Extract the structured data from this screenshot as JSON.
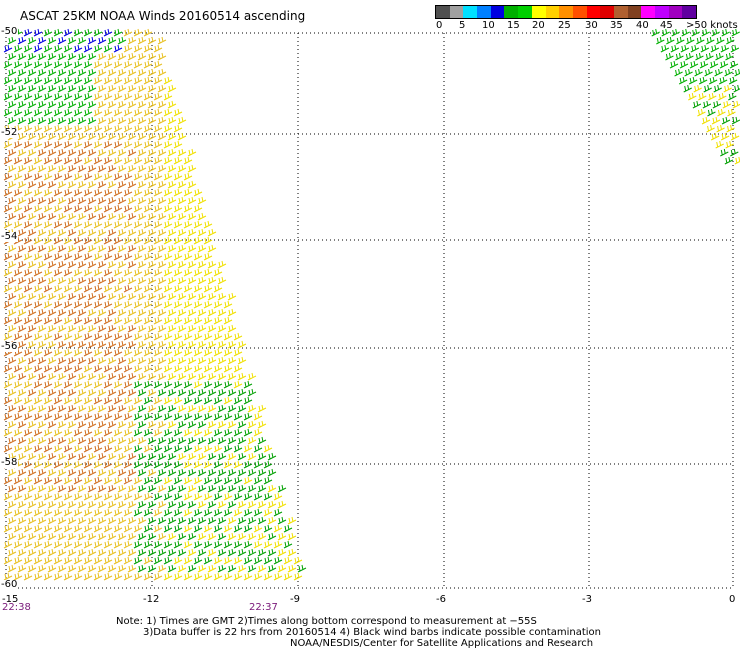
{
  "title": "ASCAT 25KM NOAA Winds 20160514 ascending",
  "legend": {
    "colors": [
      "#505050",
      "#a0a0a0",
      "#00e0ff",
      "#0080ff",
      "#0000e0",
      "#00b000",
      "#00d000",
      "#ffff00",
      "#ffd000",
      "#ff9000",
      "#ff5000",
      "#ff0000",
      "#e00000",
      "#b06030",
      "#804020",
      "#ff00ff",
      "#c000ff",
      "#a000c0",
      "#6000a0"
    ],
    "labels": [
      "0",
      "5",
      "10",
      "15",
      "20",
      "25",
      "30",
      "35",
      "40",
      "45",
      ">50 knots"
    ]
  },
  "map": {
    "lon_ticks": [
      "-15",
      "-12",
      "-9",
      "-6",
      "-3",
      "0"
    ],
    "lat_ticks": [
      "-50",
      "-52",
      "-54",
      "-56",
      "-58",
      "-60"
    ],
    "lat_range": [
      -50,
      -60
    ],
    "lon_range": [
      -15,
      0
    ],
    "times": [
      "22:38",
      "22:37"
    ]
  },
  "notes": [
    "Note: 1) Times are GMT 2)Times along bottom correspond to measurement at −55S",
    "3)Data buffer is 22 hrs from 20160514 4) Black wind barbs indicate possible contamination",
    "NOAA/NESDIS/Center for Satellite Applications and Research"
  ]
}
